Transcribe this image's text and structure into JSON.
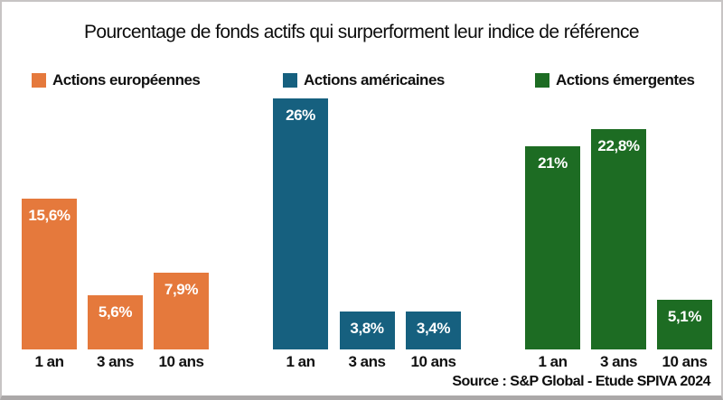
{
  "chart_data": {
    "type": "bar",
    "title": "Pourcentage de fonds actifs qui surperforment leur indice de référence",
    "categories": [
      "1 an",
      "3 ans",
      "10 ans"
    ],
    "series": [
      {
        "name": "Actions européennes",
        "color": "#E5793C",
        "values": [
          15.6,
          5.6,
          7.9
        ],
        "value_labels": [
          "15,6%",
          "5,6%",
          "7,9%"
        ]
      },
      {
        "name": "Actions américaines",
        "color": "#16607F",
        "values": [
          26,
          3.8,
          3.4
        ],
        "value_labels": [
          "26%",
          "3,8%",
          "3,4%"
        ]
      },
      {
        "name": "Actions émergentes",
        "color": "#1D6C23",
        "values": [
          21,
          22.8,
          5.1
        ],
        "value_labels": [
          "21%",
          "22,8%",
          "5,1%"
        ]
      }
    ],
    "xlabel": "",
    "ylabel": "",
    "ylim": [
      0,
      28
    ],
    "grid": false,
    "axes_visible": false,
    "legend_position": "above each group, left-aligned",
    "value_label_style": "white bold, inside top of each bar",
    "source": "Source : S&P Global - Etude SPIVA 2024"
  },
  "frame": {
    "border_color": "#C7C4C4",
    "bottom_edge_color": "#ABA8A8",
    "background": "#FFFFFF"
  }
}
